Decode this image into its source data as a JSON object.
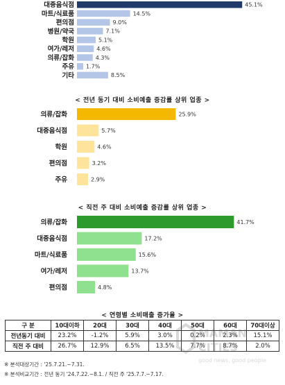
{
  "colors": {
    "dark_navy": "#1f3a6b",
    "light_blue": "#b3c6e7",
    "gold": "#f5b800",
    "light_yellow": "#fde49a",
    "green_dark": "#2c9a2c",
    "green_light": "#8fe18f"
  },
  "sections": {
    "s2_title": "< 전년 동기 대비 소비예출 증감률 상위 업종 >",
    "s3_title": "< 직전 주 대비 소비예출 증감률 상위 업종 >",
    "table_title": "< 연령별 소비매출 증가율 >"
  },
  "chart_data": [
    {
      "type": "bar",
      "orientation": "horizontal",
      "categories": [
        "대중음식점",
        "마트/식료품",
        "편의점",
        "병원/약국",
        "학원",
        "여가/레저",
        "의류/잡화",
        "주유",
        "기타"
      ],
      "values": [
        45.1,
        14.5,
        9.0,
        7.1,
        5.1,
        4.6,
        4.3,
        1.7,
        8.5
      ],
      "value_labels": [
        "45.1%",
        "14.5%",
        "9.0%",
        "7.1%",
        "5.1%",
        "4.6%",
        "4.3%",
        "1.7%",
        "8.5%"
      ],
      "xlim": [
        0,
        46
      ]
    },
    {
      "type": "bar",
      "orientation": "horizontal",
      "title": "< 전년 동기 대비 소비예출 증감률 상위 업종 >",
      "categories": [
        "의류/잡화",
        "대중음식점",
        "학원",
        "편의점",
        "주유"
      ],
      "values": [
        25.9,
        5.7,
        4.6,
        3.2,
        2.9
      ],
      "value_labels": [
        "25.9%",
        "5.7%",
        "4.6%",
        "3.2%",
        "2.9%"
      ],
      "xlim": [
        0,
        26
      ]
    },
    {
      "type": "bar",
      "orientation": "horizontal",
      "title": "< 직전 주 대비 소비예출 증감률 상위 업종 >",
      "categories": [
        "의류/잡화",
        "대중음식점",
        "마트/식료품",
        "여가/레저",
        "편의점"
      ],
      "values": [
        41.7,
        17.2,
        15.6,
        13.7,
        4.8
      ],
      "value_labels": [
        "41.7%",
        "17.2%",
        "15.6%",
        "13.7%",
        "4.8%"
      ],
      "xlim": [
        0,
        42
      ]
    },
    {
      "type": "table",
      "title": "< 연령별 소비매출 증가율 >",
      "columns": [
        "구 분",
        "10대이하",
        "20대",
        "30대",
        "40대",
        "50대",
        "60대",
        "70대이상"
      ],
      "rows": [
        [
          "전년동기 대비",
          "23.2%",
          "-1.2%",
          "5.9%",
          "3.0%",
          "0.2%",
          "2.3%",
          "15.1%"
        ],
        [
          "직전 주 대비",
          "26.7%",
          "12.9%",
          "6.5%",
          "13.5%",
          "7.7%",
          "8.7%",
          "2.0%"
        ]
      ]
    }
  ],
  "notes": [
    "※ 분석대상기간 : '25.7.21.~7.31.",
    "※ 분석비교기간 : 전년 동기 '24.7.22.~8.1. / 직전 주 '25.7.7.~7.17."
  ],
  "watermark": {
    "line1": "MAMAN",
    "line2": "CITIES",
    "slogan": "good news, good people"
  }
}
